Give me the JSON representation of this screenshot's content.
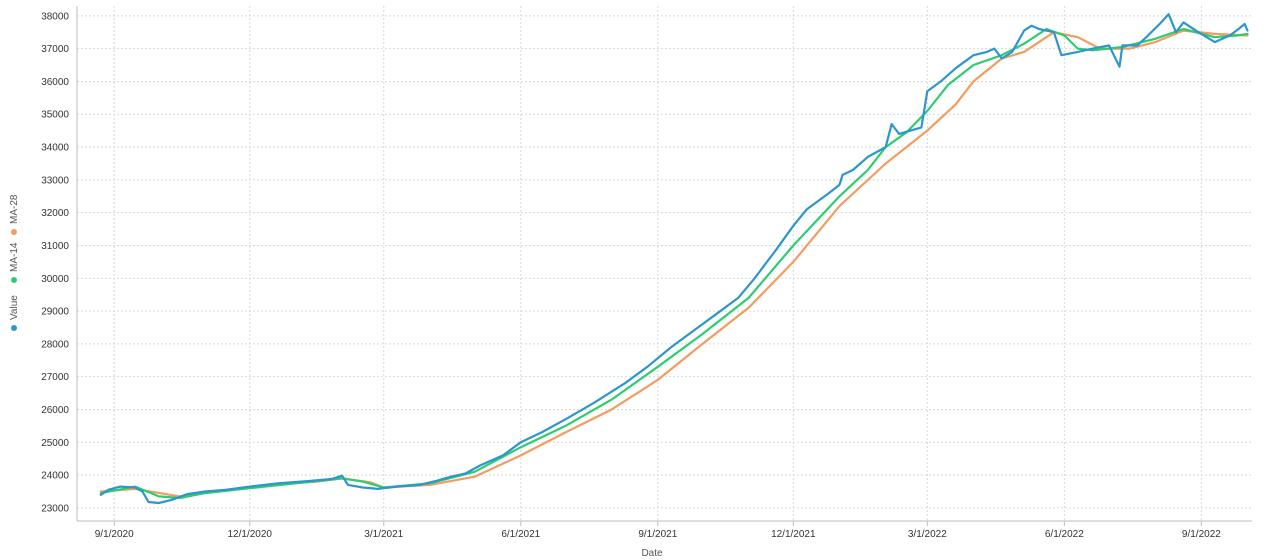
{
  "chart_data": {
    "type": "line",
    "xlabel": "Date",
    "ylabel": "",
    "x_ticks": [
      "9/1/2020",
      "12/1/2020",
      "3/1/2021",
      "6/1/2021",
      "9/1/2021",
      "12/1/2021",
      "3/1/2022",
      "6/1/2022",
      "9/1/2022"
    ],
    "xlim": [
      "2020-08-07",
      "2022-10-05"
    ],
    "ylim": [
      22600,
      38300
    ],
    "y_ticks": [
      23000,
      24000,
      25000,
      26000,
      27000,
      28000,
      29000,
      30000,
      31000,
      32000,
      33000,
      34000,
      35000,
      36000,
      37000,
      38000
    ],
    "grid": true,
    "legend": {
      "position": "left-vertical",
      "entries": [
        "Value",
        "MA-14",
        "MA-28"
      ]
    },
    "series": [
      {
        "name": "Value",
        "color": "#2d96cd",
        "points": [
          [
            "2020-08-23",
            23400
          ],
          [
            "2020-08-28",
            23550
          ],
          [
            "2020-09-05",
            23650
          ],
          [
            "2020-09-15",
            23620
          ],
          [
            "2020-09-20",
            23500
          ],
          [
            "2020-09-24",
            23180
          ],
          [
            "2020-10-01",
            23150
          ],
          [
            "2020-10-10",
            23250
          ],
          [
            "2020-10-20",
            23420
          ],
          [
            "2020-11-01",
            23500
          ],
          [
            "2020-11-15",
            23550
          ],
          [
            "2020-12-01",
            23650
          ],
          [
            "2020-12-20",
            23750
          ],
          [
            "2021-01-10",
            23820
          ],
          [
            "2021-01-25",
            23880
          ],
          [
            "2021-02-01",
            23980
          ],
          [
            "2021-02-05",
            23700
          ],
          [
            "2021-02-15",
            23620
          ],
          [
            "2021-02-25",
            23580
          ],
          [
            "2021-03-10",
            23650
          ],
          [
            "2021-03-25",
            23700
          ],
          [
            "2021-04-05",
            23820
          ],
          [
            "2021-04-15",
            23950
          ],
          [
            "2021-04-25",
            24050
          ],
          [
            "2021-05-05",
            24300
          ],
          [
            "2021-05-20",
            24600
          ],
          [
            "2021-06-01",
            25000
          ],
          [
            "2021-06-15",
            25300
          ],
          [
            "2021-07-01",
            25700
          ],
          [
            "2021-07-20",
            26200
          ],
          [
            "2021-08-10",
            26800
          ],
          [
            "2021-08-25",
            27300
          ],
          [
            "2021-09-10",
            27900
          ],
          [
            "2021-09-25",
            28400
          ],
          [
            "2021-10-10",
            28900
          ],
          [
            "2021-10-25",
            29400
          ],
          [
            "2021-11-05",
            30000
          ],
          [
            "2021-11-20",
            30900
          ],
          [
            "2021-12-01",
            31600
          ],
          [
            "2021-12-10",
            32100
          ],
          [
            "2021-12-25",
            32600
          ],
          [
            "2022-01-01",
            32850
          ],
          [
            "2022-01-03",
            33150
          ],
          [
            "2022-01-10",
            33300
          ],
          [
            "2022-01-20",
            33700
          ],
          [
            "2022-02-01",
            34000
          ],
          [
            "2022-02-05",
            34700
          ],
          [
            "2022-02-10",
            34400
          ],
          [
            "2022-02-25",
            34600
          ],
          [
            "2022-03-01",
            35700
          ],
          [
            "2022-03-10",
            36000
          ],
          [
            "2022-03-20",
            36400
          ],
          [
            "2022-04-01",
            36800
          ],
          [
            "2022-04-10",
            36900
          ],
          [
            "2022-04-15",
            37000
          ],
          [
            "2022-04-20",
            36700
          ],
          [
            "2022-04-27",
            36900
          ],
          [
            "2022-05-05",
            37550
          ],
          [
            "2022-05-10",
            37700
          ],
          [
            "2022-05-15",
            37600
          ],
          [
            "2022-05-25",
            37500
          ],
          [
            "2022-05-30",
            36800
          ],
          [
            "2022-06-10",
            36900
          ],
          [
            "2022-06-20",
            37000
          ],
          [
            "2022-07-01",
            37100
          ],
          [
            "2022-07-08",
            36450
          ],
          [
            "2022-07-10",
            37100
          ],
          [
            "2022-07-20",
            37100
          ],
          [
            "2022-07-26",
            37350
          ],
          [
            "2022-08-05",
            37800
          ],
          [
            "2022-08-10",
            38050
          ],
          [
            "2022-08-15",
            37500
          ],
          [
            "2022-08-20",
            37800
          ],
          [
            "2022-08-30",
            37500
          ],
          [
            "2022-09-10",
            37200
          ],
          [
            "2022-09-20",
            37400
          ],
          [
            "2022-09-26",
            37600
          ],
          [
            "2022-09-30",
            37750
          ],
          [
            "2022-10-02",
            37550
          ]
        ]
      },
      {
        "name": "MA-14",
        "color": "#2ecc71",
        "points": [
          [
            "2020-08-23",
            23450
          ],
          [
            "2020-09-15",
            23650
          ],
          [
            "2020-10-01",
            23350
          ],
          [
            "2020-10-15",
            23300
          ],
          [
            "2020-11-01",
            23450
          ],
          [
            "2020-12-01",
            23600
          ],
          [
            "2021-01-01",
            23750
          ],
          [
            "2021-02-01",
            23900
          ],
          [
            "2021-02-15",
            23800
          ],
          [
            "2021-03-01",
            23620
          ],
          [
            "2021-04-01",
            23750
          ],
          [
            "2021-05-01",
            24100
          ],
          [
            "2021-06-01",
            24850
          ],
          [
            "2021-07-01",
            25500
          ],
          [
            "2021-08-01",
            26300
          ],
          [
            "2021-09-01",
            27300
          ],
          [
            "2021-10-01",
            28300
          ],
          [
            "2021-11-01",
            29400
          ],
          [
            "2021-12-01",
            31000
          ],
          [
            "2022-01-01",
            32500
          ],
          [
            "2022-01-20",
            33300
          ],
          [
            "2022-02-01",
            34000
          ],
          [
            "2022-02-15",
            34450
          ],
          [
            "2022-03-01",
            35100
          ],
          [
            "2022-03-15",
            35900
          ],
          [
            "2022-04-01",
            36500
          ],
          [
            "2022-04-20",
            36800
          ],
          [
            "2022-05-05",
            37150
          ],
          [
            "2022-05-20",
            37600
          ],
          [
            "2022-06-01",
            37400
          ],
          [
            "2022-06-10",
            37000
          ],
          [
            "2022-06-20",
            36950
          ],
          [
            "2022-07-10",
            37050
          ],
          [
            "2022-08-01",
            37300
          ],
          [
            "2022-08-20",
            37600
          ],
          [
            "2022-09-10",
            37350
          ],
          [
            "2022-09-25",
            37400
          ],
          [
            "2022-10-02",
            37450
          ]
        ]
      },
      {
        "name": "MA-28",
        "color": "#f39c60",
        "points": [
          [
            "2020-08-23",
            23500
          ],
          [
            "2020-09-15",
            23580
          ],
          [
            "2020-10-15",
            23350
          ],
          [
            "2020-11-15",
            23550
          ],
          [
            "2020-12-15",
            23700
          ],
          [
            "2021-01-15",
            23800
          ],
          [
            "2021-02-01",
            23900
          ],
          [
            "2021-02-20",
            23780
          ],
          [
            "2021-03-01",
            23620
          ],
          [
            "2021-04-01",
            23700
          ],
          [
            "2021-05-01",
            23950
          ],
          [
            "2021-06-01",
            24600
          ],
          [
            "2021-07-01",
            25300
          ],
          [
            "2021-08-01",
            26000
          ],
          [
            "2021-09-01",
            26900
          ],
          [
            "2021-10-01",
            28000
          ],
          [
            "2021-11-01",
            29100
          ],
          [
            "2021-12-01",
            30500
          ],
          [
            "2022-01-01",
            32200
          ],
          [
            "2022-02-01",
            33500
          ],
          [
            "2022-03-01",
            34500
          ],
          [
            "2022-03-20",
            35300
          ],
          [
            "2022-04-01",
            36000
          ],
          [
            "2022-04-20",
            36700
          ],
          [
            "2022-05-05",
            36900
          ],
          [
            "2022-05-25",
            37500
          ],
          [
            "2022-06-10",
            37350
          ],
          [
            "2022-06-25",
            37000
          ],
          [
            "2022-07-15",
            37000
          ],
          [
            "2022-08-01",
            37200
          ],
          [
            "2022-08-20",
            37550
          ],
          [
            "2022-09-10",
            37450
          ],
          [
            "2022-10-02",
            37400
          ]
        ]
      }
    ]
  }
}
